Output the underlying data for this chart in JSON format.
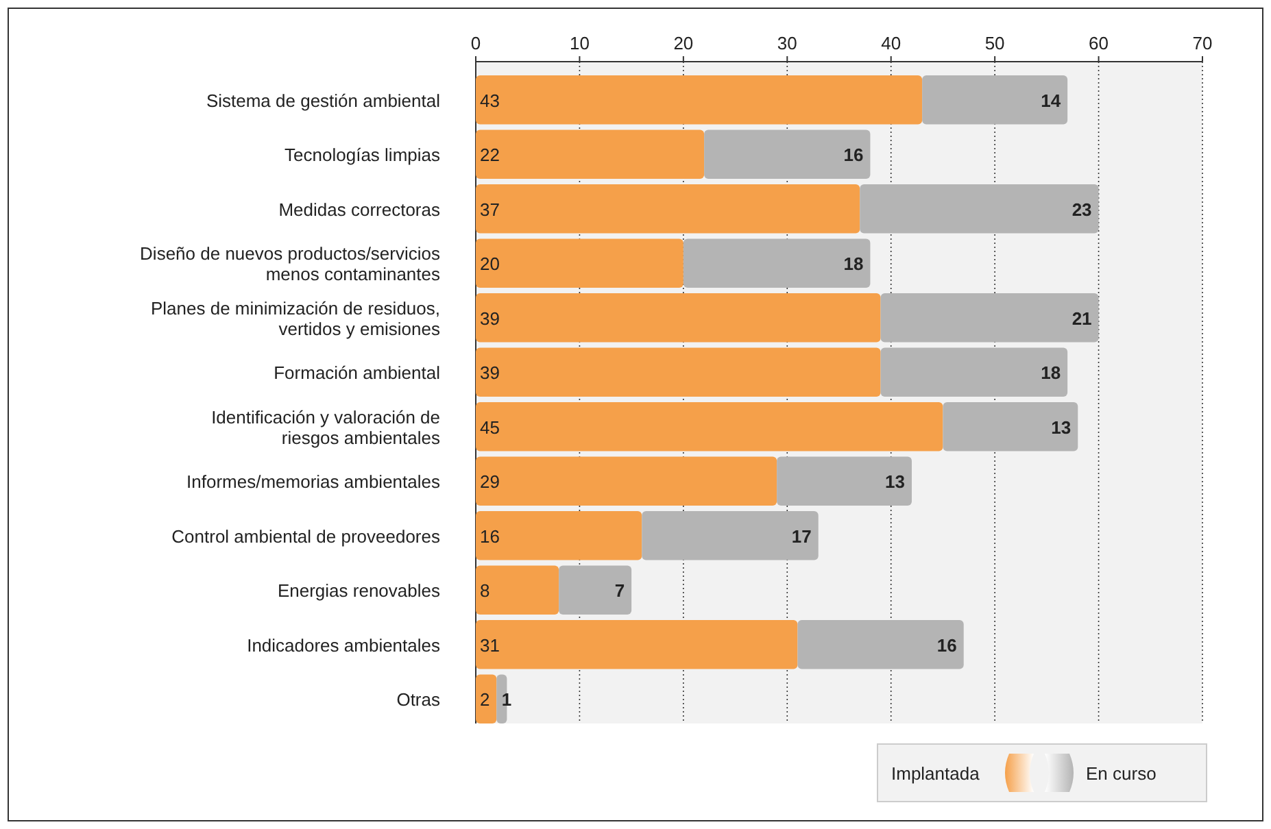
{
  "chart_data": {
    "type": "bar",
    "orientation": "horizontal",
    "stacked": true,
    "categories": [
      "Sistema de gestión ambiental",
      "Tecnologías limpias",
      "Medidas correctoras",
      "Diseño de nuevos productos/servicios menos contaminantes",
      "Planes de minimización de residuos, vertidos y emisiones",
      "Formación ambiental",
      "Identificación y valoración de riesgos ambientales",
      "Informes/memorias ambientales",
      "Control ambiental de proveedores",
      "Energias renovables",
      "Indicadores ambientales",
      "Otras"
    ],
    "series": [
      {
        "name": "Implantada",
        "color": "#f5a04a",
        "values": [
          43,
          22,
          37,
          20,
          39,
          39,
          45,
          29,
          16,
          8,
          31,
          2
        ]
      },
      {
        "name": "En curso",
        "color": "#b4b4b4",
        "values": [
          14,
          16,
          23,
          18,
          21,
          18,
          13,
          13,
          17,
          7,
          16,
          1
        ]
      }
    ],
    "xlim": [
      0,
      70
    ],
    "xticks": [
      0,
      10,
      20,
      30,
      40,
      50,
      60,
      70
    ],
    "grid": "x",
    "legend": "bottom right",
    "data_labels": true
  }
}
